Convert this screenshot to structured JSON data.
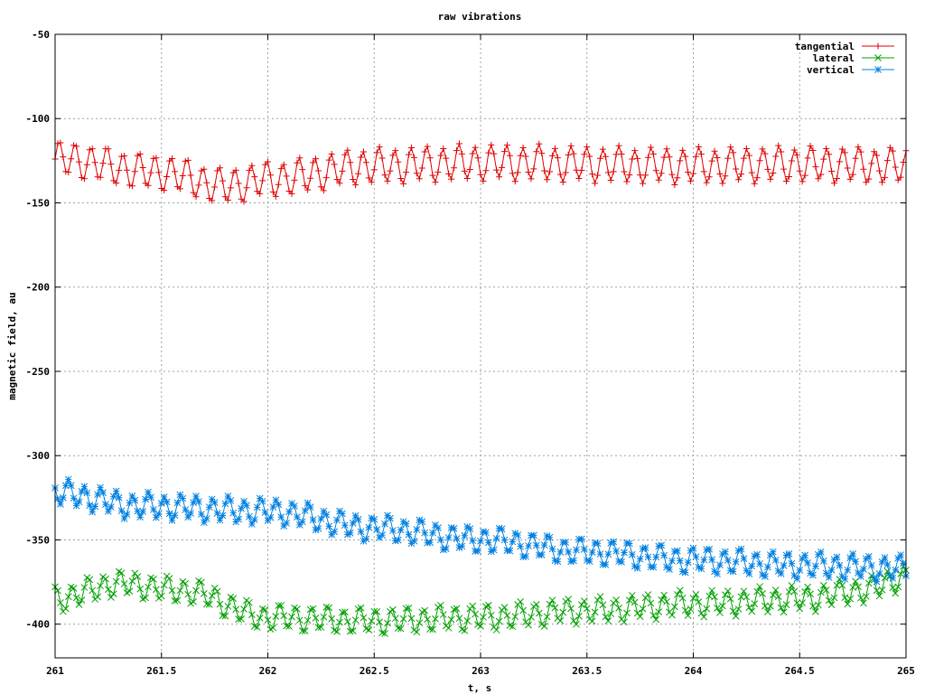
{
  "chart_data": {
    "type": "line",
    "title": "raw vibrations",
    "xlabel": "t, s",
    "ylabel": "magnetic field, au",
    "xlim": [
      261,
      265
    ],
    "ylim": [
      -420,
      -50
    ],
    "x_ticks": [
      "261",
      "261.5",
      "262",
      "262.5",
      "263",
      "263.5",
      "264",
      "264.5",
      "265"
    ],
    "y_ticks": [
      "-50",
      "-100",
      "-150",
      "-200",
      "-250",
      "-300",
      "-350",
      "-400"
    ],
    "grid": true,
    "legend_position": "top-right",
    "series": [
      {
        "name": "tangential",
        "color": "#e00000",
        "marker": "plus",
        "sample_step_s": 0.0125,
        "t_start": 261,
        "oscillation_hz": 13.3,
        "amplitude": 10,
        "baseline_knots": [
          [
            261,
            -124
          ],
          [
            261.5,
            -132
          ],
          [
            261.8,
            -140
          ],
          [
            262,
            -136
          ],
          [
            262.5,
            -128
          ],
          [
            263,
            -126
          ],
          [
            264,
            -128
          ],
          [
            264.5,
            -127
          ],
          [
            265,
            -128
          ]
        ]
      },
      {
        "name": "lateral",
        "color": "#00a000",
        "marker": "cross",
        "sample_step_s": 0.0125,
        "t_start": 261,
        "oscillation_hz": 13.3,
        "amplitude": 7,
        "baseline_knots": [
          [
            261,
            -385
          ],
          [
            261.3,
            -376
          ],
          [
            261.6,
            -380
          ],
          [
            262,
            -396
          ],
          [
            262.5,
            -398
          ],
          [
            263,
            -396
          ],
          [
            263.5,
            -392
          ],
          [
            264,
            -388
          ],
          [
            264.5,
            -385
          ],
          [
            264.8,
            -380
          ],
          [
            265,
            -372
          ]
        ]
      },
      {
        "name": "vertical",
        "color": "#0080e0",
        "marker": "star",
        "sample_step_s": 0.0125,
        "t_start": 261,
        "oscillation_hz": 13.3,
        "amplitude": 7,
        "baseline_knots": [
          [
            261,
            -322
          ],
          [
            261.4,
            -330
          ],
          [
            262,
            -333
          ],
          [
            262.5,
            -343
          ],
          [
            263,
            -350
          ],
          [
            263.5,
            -357
          ],
          [
            264,
            -362
          ],
          [
            264.5,
            -365
          ],
          [
            265,
            -367
          ]
        ]
      }
    ]
  }
}
